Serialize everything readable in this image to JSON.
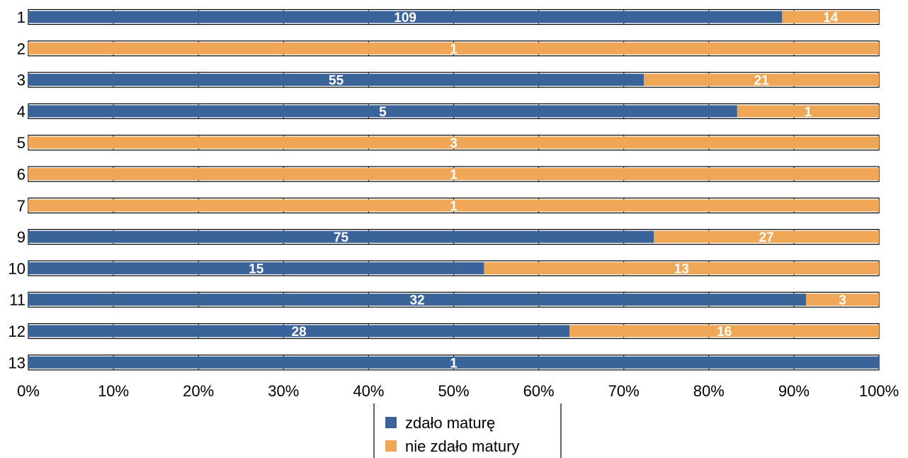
{
  "chart_data": {
    "type": "bar",
    "orientation": "horizontal",
    "stacked": "percent",
    "title": "",
    "categories": [
      "1",
      "2",
      "3",
      "4",
      "5",
      "6",
      "7",
      "9",
      "10",
      "11",
      "12",
      "13"
    ],
    "series": [
      {
        "name": "zdało maturę",
        "color": "#3a6399",
        "values": [
          109,
          0,
          55,
          5,
          0,
          0,
          0,
          75,
          15,
          32,
          28,
          1
        ]
      },
      {
        "name": "nie zdało matury",
        "color": "#f0a755",
        "values": [
          14,
          1,
          21,
          1,
          3,
          1,
          1,
          27,
          13,
          3,
          16,
          0
        ]
      }
    ],
    "xlim": [
      0,
      100
    ],
    "xticks": [
      "0%",
      "10%",
      "20%",
      "30%",
      "40%",
      "50%",
      "60%",
      "70%",
      "80%",
      "90%",
      "100%"
    ],
    "grid": true,
    "legend_position": "bottom"
  }
}
